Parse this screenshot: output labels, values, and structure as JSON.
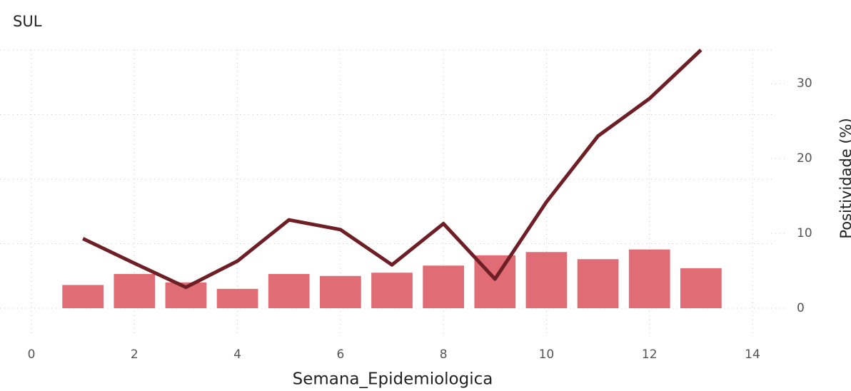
{
  "chart_data": {
    "type": "combo",
    "title": "SUL",
    "x_label": "Semana_Epidemiologica",
    "y2_label": "Positividade (%)",
    "xlim": [
      0,
      14
    ],
    "xticks": [
      0,
      2,
      4,
      6,
      8,
      10,
      12,
      14
    ],
    "ylim": [
      0,
      4
    ],
    "yticks": [
      0,
      1,
      2,
      3,
      4
    ],
    "y2lim": [
      0,
      34.5
    ],
    "y2ticks": [
      0,
      10,
      20,
      30
    ],
    "grid": true,
    "series": [
      {
        "type": "bar",
        "color": "#e06c75",
        "x": [
          1,
          2,
          3,
          4,
          5,
          6,
          7,
          8,
          9,
          10,
          11,
          12,
          13
        ],
        "values": [
          0.36,
          0.53,
          0.4,
          0.3,
          0.53,
          0.5,
          0.55,
          0.66,
          0.82,
          0.87,
          0.76,
          0.91,
          0.62
        ]
      },
      {
        "type": "line",
        "axis": "y2",
        "color": "#6e1f26",
        "x": [
          1,
          2,
          3,
          4,
          5,
          6,
          7,
          8,
          9,
          10,
          11,
          12,
          13
        ],
        "values": [
          9.3,
          6.0,
          2.8,
          6.3,
          11.8,
          10.5,
          5.8,
          11.3,
          3.9,
          14.2,
          23.0,
          28.0,
          34.5
        ]
      }
    ]
  }
}
